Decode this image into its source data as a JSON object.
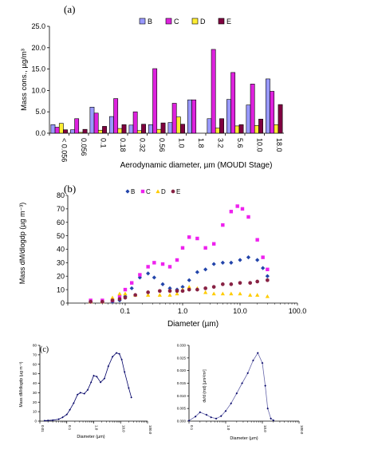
{
  "panel_labels": {
    "a": "(a)",
    "b": "(b)",
    "c": "(c)"
  },
  "chart_data": [
    {
      "id": "a",
      "type": "bar",
      "ylabel": "Mass cons., µg/m³",
      "xlabel": "Aerodynamic diameter, µm (MOUDI Stage)",
      "ylim": [
        0,
        25
      ],
      "yticks": [
        "0.0",
        "5.0",
        "10.0",
        "15.0",
        "20.0",
        "25.0"
      ],
      "categories": [
        "< 0.056",
        "0.056",
        "0.1",
        "0.18",
        "0.32",
        "0.56",
        "1.0",
        "1.8",
        "3.2",
        "5.6",
        "10.0",
        "18.0"
      ],
      "legend_position": "top",
      "series": [
        {
          "name": "B",
          "color": "#9999ff",
          "values": [
            2.0,
            0.8,
            6.1,
            3.9,
            1.9,
            2.0,
            2.5,
            7.8,
            3.4,
            7.9,
            6.6,
            12.7
          ]
        },
        {
          "name": "C",
          "color": "#dd22dd",
          "values": [
            1.4,
            3.4,
            4.7,
            8.1,
            5.0,
            15.1,
            7.0,
            7.8,
            19.6,
            14.2,
            11.5,
            9.8
          ]
        },
        {
          "name": "D",
          "color": "#ffee33",
          "values": [
            2.3,
            0.2,
            0.7,
            1.1,
            0.6,
            0.9,
            3.8,
            0.0,
            1.2,
            1.7,
            1.8,
            2.0
          ]
        },
        {
          "name": "E",
          "color": "#800040",
          "values": [
            0.8,
            0.9,
            1.6,
            2.0,
            2.1,
            2.4,
            2.1,
            0.0,
            3.4,
            2.0,
            3.3,
            6.7
          ]
        }
      ]
    },
    {
      "id": "b",
      "type": "scatter",
      "ylabel": "Mass dM/dlogdp (µg m⁻³)",
      "xlabel": "Diameter (µm)",
      "xscale": "log",
      "xlim": [
        0.01,
        100
      ],
      "ylim": [
        0,
        80
      ],
      "xticks": [
        "0.1",
        "1.0",
        "10.0",
        "100.0"
      ],
      "yticks": [
        "0",
        "10",
        "20",
        "30",
        "40",
        "50",
        "60",
        "70",
        "80"
      ],
      "legend_position": "top",
      "series": [
        {
          "name": "B",
          "color": "#2244aa",
          "marker": "diamond",
          "x": [
            0.025,
            0.04,
            0.06,
            0.08,
            0.1,
            0.13,
            0.18,
            0.25,
            0.32,
            0.45,
            0.6,
            0.8,
            1.0,
            1.3,
            1.8,
            2.5,
            3.5,
            5,
            7,
            10,
            14,
            20,
            25,
            30
          ],
          "y": [
            1,
            1,
            1,
            2,
            5,
            11,
            19,
            22,
            19,
            14,
            11,
            10,
            12,
            17,
            23,
            25,
            29,
            30,
            30,
            32,
            34,
            32,
            26,
            20
          ]
        },
        {
          "name": "C",
          "color": "#ee22ee",
          "marker": "square",
          "x": [
            0.025,
            0.04,
            0.06,
            0.08,
            0.1,
            0.13,
            0.18,
            0.25,
            0.32,
            0.45,
            0.6,
            0.8,
            1.0,
            1.3,
            1.8,
            2.5,
            3.5,
            5,
            7,
            9,
            11,
            14,
            20,
            25,
            30
          ],
          "y": [
            2,
            2,
            2,
            5,
            10,
            15,
            21,
            27,
            30,
            29,
            27,
            32,
            41,
            49,
            48,
            41,
            44,
            58,
            68,
            72,
            70,
            64,
            47,
            34,
            25
          ]
        },
        {
          "name": "D",
          "color": "#ffcc00",
          "marker": "triangle",
          "x": [
            0.025,
            0.04,
            0.06,
            0.08,
            0.1,
            0.15,
            0.25,
            0.4,
            0.6,
            0.8,
            1.0,
            1.3,
            1.8,
            2.5,
            3.5,
            5,
            7,
            10,
            15,
            20,
            30
          ],
          "y": [
            1,
            1,
            4,
            7,
            7,
            6,
            6,
            6,
            6,
            7,
            10,
            12,
            11,
            8,
            7,
            7,
            7,
            7,
            6,
            6,
            5
          ]
        },
        {
          "name": "E",
          "color": "#882244",
          "marker": "circle",
          "x": [
            0.025,
            0.04,
            0.06,
            0.08,
            0.1,
            0.15,
            0.25,
            0.4,
            0.6,
            0.8,
            1.0,
            1.3,
            1.8,
            2.5,
            3.5,
            5,
            7,
            10,
            15,
            20,
            30
          ],
          "y": [
            1,
            1,
            2,
            3,
            4,
            6,
            8,
            9,
            9,
            9,
            9,
            10,
            10,
            11,
            12,
            14,
            14,
            15,
            15,
            16,
            17
          ]
        }
      ]
    },
    {
      "id": "c-left",
      "type": "line",
      "ylabel": "Mass dM/dlogdp (µg m⁻³)",
      "xlabel": "Diameter (µm)",
      "xscale": "log",
      "xlim": [
        0.01,
        100
      ],
      "ylim": [
        0,
        80
      ],
      "xticks": [
        "0.01",
        "0.1",
        "1.0",
        "10.0",
        "100.0"
      ],
      "yticks": [
        "0",
        "10",
        "20",
        "30",
        "40",
        "50",
        "60",
        "70",
        "80"
      ],
      "series": [
        {
          "color": "#000066",
          "x": [
            0.015,
            0.02,
            0.03,
            0.05,
            0.07,
            0.1,
            0.13,
            0.18,
            0.25,
            0.32,
            0.45,
            0.6,
            0.8,
            1.0,
            1.3,
            1.8,
            2.5,
            3.5,
            5,
            7,
            9,
            11,
            14,
            20,
            25
          ],
          "y": [
            0.5,
            0.7,
            1,
            2,
            4,
            7,
            12,
            19,
            28,
            30,
            29,
            33,
            41,
            48,
            47,
            41,
            45,
            58,
            68,
            72,
            71,
            65,
            52,
            35,
            25
          ]
        }
      ]
    },
    {
      "id": "c-right",
      "type": "line",
      "ylabel": "dv/d (md) [µm³/m³]",
      "xlabel": "Diameter (µm)",
      "xscale": "log",
      "xlim": [
        0.1,
        100
      ],
      "ylim": [
        0,
        0.03
      ],
      "xticks": [
        "0.1",
        "1.0",
        "10.0",
        "100.0"
      ],
      "yticks": [
        "0.000",
        "0.005",
        "0.010",
        "0.015",
        "0.020",
        "0.025",
        "0.030"
      ],
      "series": [
        {
          "color": "#000066",
          "x": [
            0.1,
            0.15,
            0.2,
            0.3,
            0.4,
            0.55,
            0.75,
            1.0,
            1.4,
            2,
            2.8,
            4,
            5.6,
            7.5,
            10,
            12,
            14,
            17,
            20
          ],
          "y": [
            0.0002,
            0.0018,
            0.0035,
            0.0025,
            0.0015,
            0.001,
            0.002,
            0.004,
            0.007,
            0.011,
            0.015,
            0.019,
            0.024,
            0.027,
            0.023,
            0.014,
            0.005,
            0.001,
            0.0003
          ]
        }
      ]
    }
  ]
}
